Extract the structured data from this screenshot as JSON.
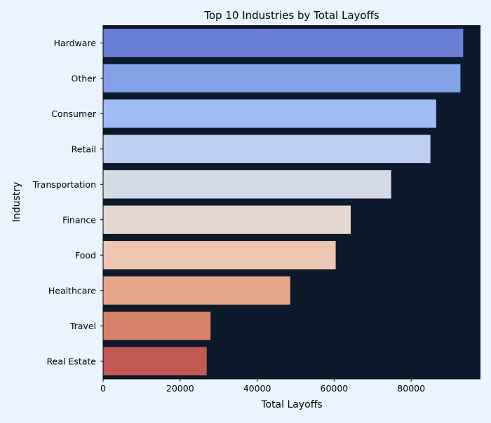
{
  "chart_data": {
    "type": "bar",
    "orientation": "horizontal",
    "title": "Top 10 Industries by Total Layoffs",
    "xlabel": "Total Layoffs",
    "ylabel": "Industry",
    "xlim": [
      0,
      98000
    ],
    "xticks": [
      0,
      20000,
      40000,
      60000,
      80000
    ],
    "xtick_labels": [
      "0",
      "20000",
      "40000",
      "60000",
      "80000"
    ],
    "grid": false,
    "categories": [
      "Hardware",
      "Other",
      "Consumer",
      "Retail",
      "Transportation",
      "Finance",
      "Food",
      "Healthcare",
      "Travel",
      "Real Estate"
    ],
    "values": [
      93500,
      92800,
      86500,
      85000,
      74800,
      64300,
      60400,
      48600,
      27900,
      26900
    ],
    "colors": [
      "#6a80d6",
      "#84a0e8",
      "#a1bbf6",
      "#bdd0f2",
      "#d4dae6",
      "#e6d8d1",
      "#eec5b1",
      "#e7a78d",
      "#d9826a",
      "#c25a52"
    ]
  },
  "theme": {
    "figure_background": "#eaf4fe",
    "plot_background": "#0d1a2b"
  }
}
